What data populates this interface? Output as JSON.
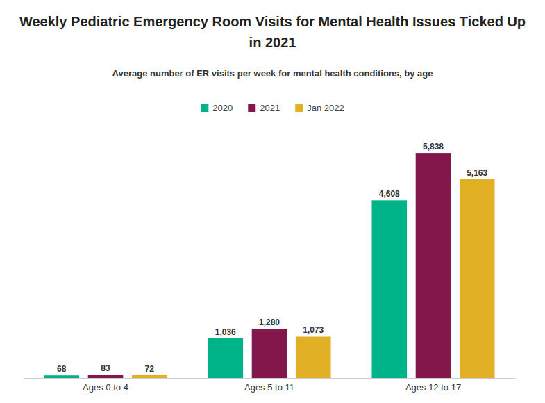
{
  "chart_data": {
    "type": "bar",
    "title": "Weekly Pediatric Emergency Room Visits for Mental Health Issues Ticked Up in 2021",
    "subtitle": "Average number of ER visits per week for mental health conditions, by age",
    "categories": [
      "Ages 0 to 4",
      "Ages 5 to 11",
      "Ages 12 to 17"
    ],
    "series": [
      {
        "name": "2020",
        "color": "#00b48a",
        "values": [
          68,
          1036,
          4608
        ],
        "value_labels": [
          "68",
          "1,036",
          "4,608"
        ]
      },
      {
        "name": "2021",
        "color": "#83174b",
        "values": [
          83,
          1280,
          5838
        ],
        "value_labels": [
          "83",
          "1,280",
          "5,838"
        ]
      },
      {
        "name": "Jan 2022",
        "color": "#e1b024",
        "values": [
          72,
          1073,
          5163
        ],
        "value_labels": [
          "72",
          "1,073",
          "5,163"
        ]
      }
    ],
    "ylim": [
      0,
      6200
    ],
    "legend": "top",
    "data_labels": true,
    "tick_labels": "x",
    "grid": false
  }
}
